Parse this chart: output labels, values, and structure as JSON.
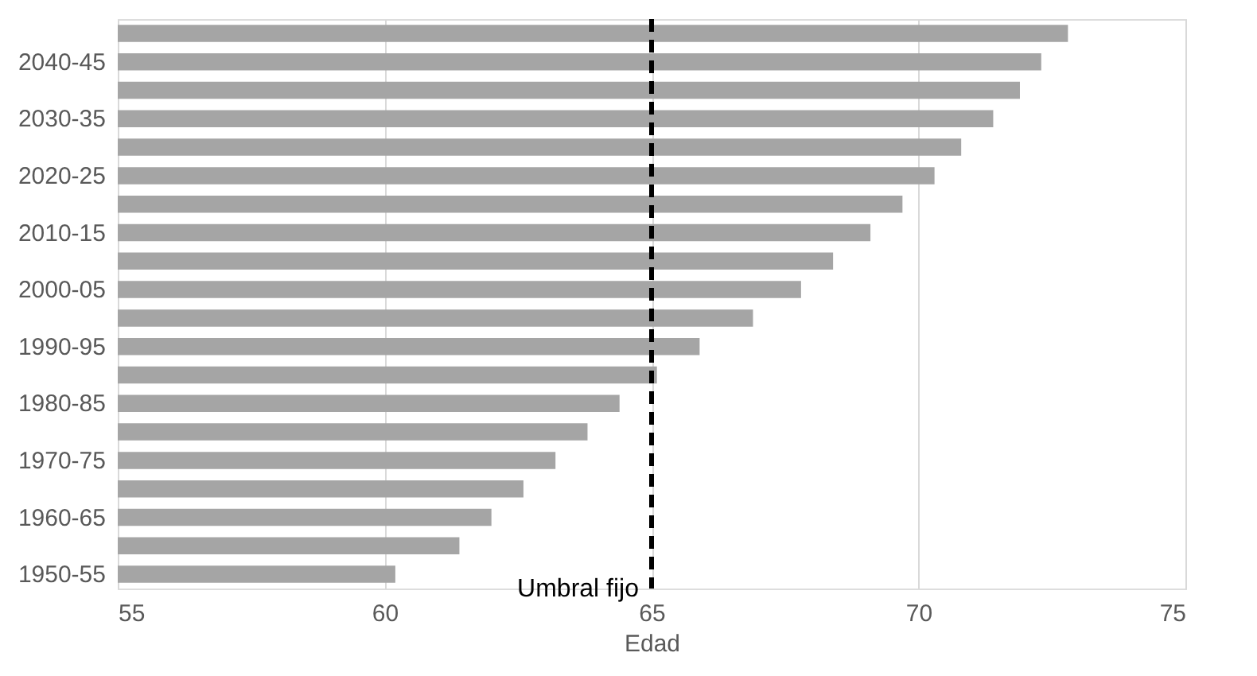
{
  "chart_data": {
    "type": "bar",
    "orientation": "horizontal",
    "xlabel": "Edad",
    "categories": [
      null,
      "2040-45",
      null,
      "2030-35",
      null,
      "2020-25",
      null,
      "2010-15",
      null,
      "2000-05",
      null,
      "1990-95",
      null,
      "1980-85",
      null,
      "1970-75",
      null,
      "1960-65",
      null,
      "1950-55"
    ],
    "values": [
      72.8,
      72.3,
      71.9,
      71.4,
      70.8,
      70.3,
      69.7,
      69.1,
      68.4,
      67.8,
      66.9,
      65.9,
      65.1,
      64.4,
      63.8,
      63.2,
      62.6,
      62.0,
      61.4,
      60.2
    ],
    "color": "#a5a5a5",
    "xlim": [
      55,
      75
    ],
    "xticks": [
      55,
      60,
      65,
      70,
      75
    ],
    "grid": "x",
    "ref_lines": [
      {
        "axis": "x",
        "value": 65,
        "label": "Umbral fijo",
        "color": "#000000",
        "line_style": "dashed"
      }
    ]
  }
}
